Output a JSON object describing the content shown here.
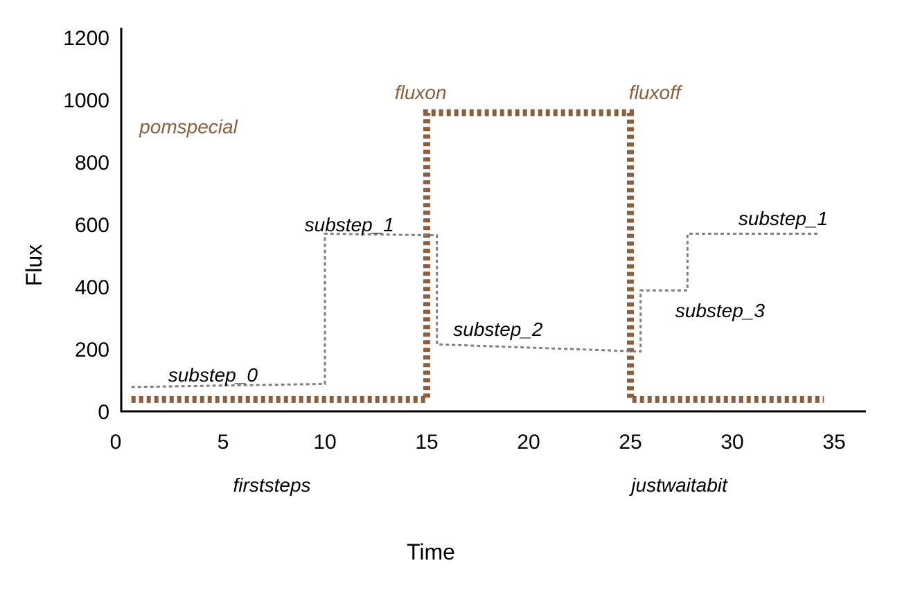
{
  "chart_data": {
    "type": "line",
    "title": "",
    "xlabel": "Time",
    "ylabel": "Flux",
    "xlim": [
      0,
      37
    ],
    "ylim": [
      0,
      1220
    ],
    "xticks": [
      0,
      5,
      10,
      15,
      20,
      25,
      30,
      35
    ],
    "yticks": [
      0,
      200,
      400,
      600,
      800,
      1000,
      1200
    ],
    "grid": false,
    "colors": {
      "pom_series": "#8B5E3C",
      "substep_series": "#808080",
      "axis": "#000000",
      "pom_annotations": "#8B5E3C",
      "substep_annotations": "#000000"
    },
    "series": [
      {
        "style": "thick dotted, brown",
        "x": [
          0.5,
          15,
          15,
          25,
          25,
          34.5
        ],
        "y": [
          38,
          38,
          958,
          958,
          38,
          38
        ]
      },
      {
        "style": "thin dotted, gray",
        "x": [
          0.5,
          10,
          10,
          15.5,
          15.5,
          25.5,
          25.5,
          27.8,
          27.8,
          34.2
        ],
        "y": [
          78,
          88,
          570,
          565,
          215,
          192,
          388,
          388,
          570,
          570
        ]
      }
    ],
    "annotations": {
      "pom": [
        {
          "text": "pomspecial",
          "x": 3.3,
          "y": 915
        },
        {
          "text": "fluxon",
          "x": 14.7,
          "y": 1025
        },
        {
          "text": "fluxoff",
          "x": 26.2,
          "y": 1025
        }
      ],
      "substeps": [
        {
          "text": "substep_0",
          "x": 4.5,
          "y": 118
        },
        {
          "text": "substep_1",
          "x": 11.2,
          "y": 600
        },
        {
          "text": "substep_2",
          "x": 18.5,
          "y": 265
        },
        {
          "text": "substep_3",
          "x": 29.4,
          "y": 325
        },
        {
          "text": "substep_1",
          "x": 32.5,
          "y": 620
        }
      ],
      "phases": [
        {
          "text": "firststeps",
          "x": 7.4
        },
        {
          "text": "justwaitabit",
          "x": 27.4
        }
      ]
    }
  }
}
